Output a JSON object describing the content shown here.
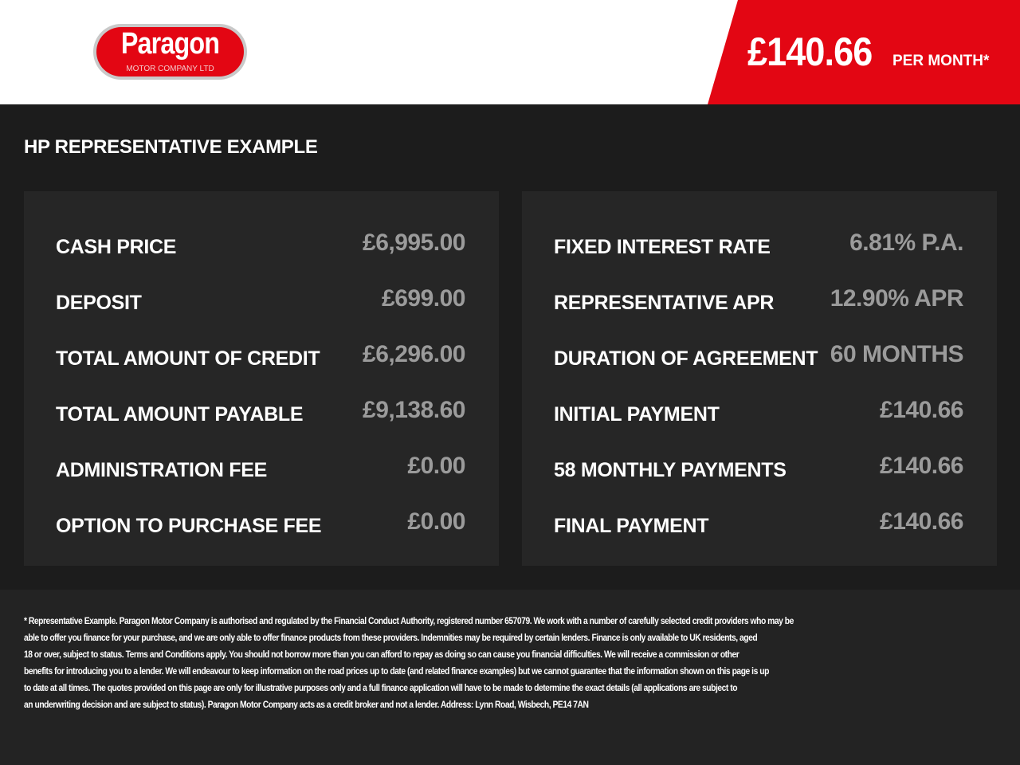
{
  "brand": {
    "name": "Paragon",
    "subtitle": "MOTOR COMPANY LTD"
  },
  "banner": {
    "price": "£140.66",
    "per": "PER MONTH*"
  },
  "title": "HP REPRESENTATIVE EXAMPLE",
  "left": [
    {
      "label": "CASH PRICE",
      "value": "£6,995.00"
    },
    {
      "label": "DEPOSIT",
      "value": "£699.00"
    },
    {
      "label": "TOTAL AMOUNT OF CREDIT",
      "value": "£6,296.00"
    },
    {
      "label": "TOTAL AMOUNT PAYABLE",
      "value": "£9,138.60"
    },
    {
      "label": "ADMINISTRATION FEE",
      "value": "£0.00"
    },
    {
      "label": "OPTION TO PURCHASE FEE",
      "value": "£0.00"
    }
  ],
  "right": [
    {
      "label": "FIXED INTEREST RATE",
      "value": "6.81% P.A."
    },
    {
      "label": "REPRESENTATIVE APR",
      "value": "12.90% APR"
    },
    {
      "label": "DURATION OF AGREEMENT",
      "value": "60 MONTHS"
    },
    {
      "label": "INITIAL PAYMENT",
      "value": "£140.66"
    },
    {
      "label": "58 MONTHLY PAYMENTS",
      "value": "£140.66"
    },
    {
      "label": "FINAL PAYMENT",
      "value": "£140.66"
    }
  ],
  "footer": [
    "* Representative Example. Paragon Motor Company is authorised and regulated by the Financial Conduct Authority, registered number 657079. We work with a number of carefully selected credit providers who may be",
    "able to offer you finance for your purchase, and we are only able to offer finance products from these providers. Indemnities may be required by certain lenders. Finance is only available to UK residents, aged",
    "18 or over, subject to status. Terms and Conditions apply. You should not borrow more than you can afford to repay as doing so can cause you financial difficulties. We will receive a commission or other",
    "benefits for introducing you to a lender. We will endeavour to keep information on the road prices up to date (and related finance examples) but we cannot guarantee that the information shown on this page is up",
    "to date at all times. The quotes provided on this page are only for illustrative purposes only and a full finance application will have to be made to determine the exact details (all applications are subject to",
    "an underwriting decision and are subject to status). Paragon Motor Company acts as a credit broker and not a lender. Address: Lynn Road, Wisbech, PE14 7AN"
  ]
}
